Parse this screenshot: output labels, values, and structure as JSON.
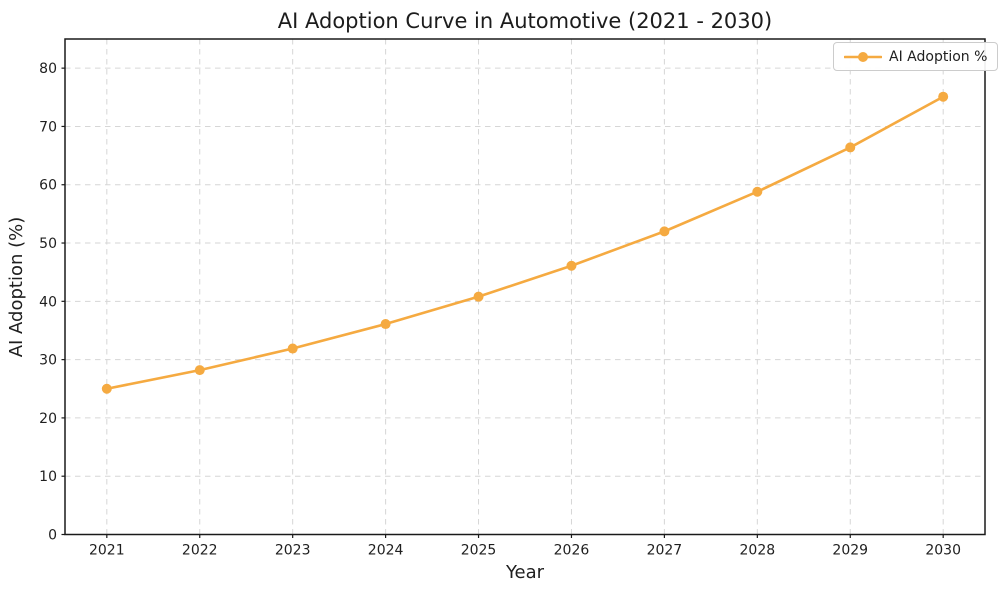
{
  "chart_data": {
    "type": "line",
    "title": "AI Adoption Curve in Automotive (2021 - 2030)",
    "xlabel": "Year",
    "ylabel": "AI Adoption (%)",
    "categories": [
      2021,
      2022,
      2023,
      2024,
      2025,
      2026,
      2027,
      2028,
      2029,
      2030
    ],
    "series": [
      {
        "name": "AI Adoption %",
        "values": [
          25.0,
          28.2,
          31.9,
          36.1,
          40.8,
          46.1,
          52.0,
          58.8,
          66.4,
          75.1
        ],
        "color": "#F5AA41",
        "marker": "circle"
      }
    ],
    "ylim": [
      0,
      85
    ],
    "xlim": [
      2020.55,
      2030.45
    ],
    "yticks": [
      0,
      10,
      20,
      30,
      40,
      50,
      60,
      70,
      80
    ],
    "xticks": [
      2021,
      2022,
      2023,
      2024,
      2025,
      2026,
      2027,
      2028,
      2029,
      2030
    ],
    "grid": true,
    "grid_style": "dashed",
    "legend": {
      "position": "upper right",
      "entries": [
        "AI Adoption %"
      ]
    }
  },
  "colors": {
    "line": "#F5AA41",
    "grid": "#D6D6D6",
    "spine": "#1A1A1A",
    "text": "#1F1F1F",
    "legend_border": "#CCCCCC",
    "legend_bg": "#FFFFFF",
    "background": "#FFFFFF"
  }
}
